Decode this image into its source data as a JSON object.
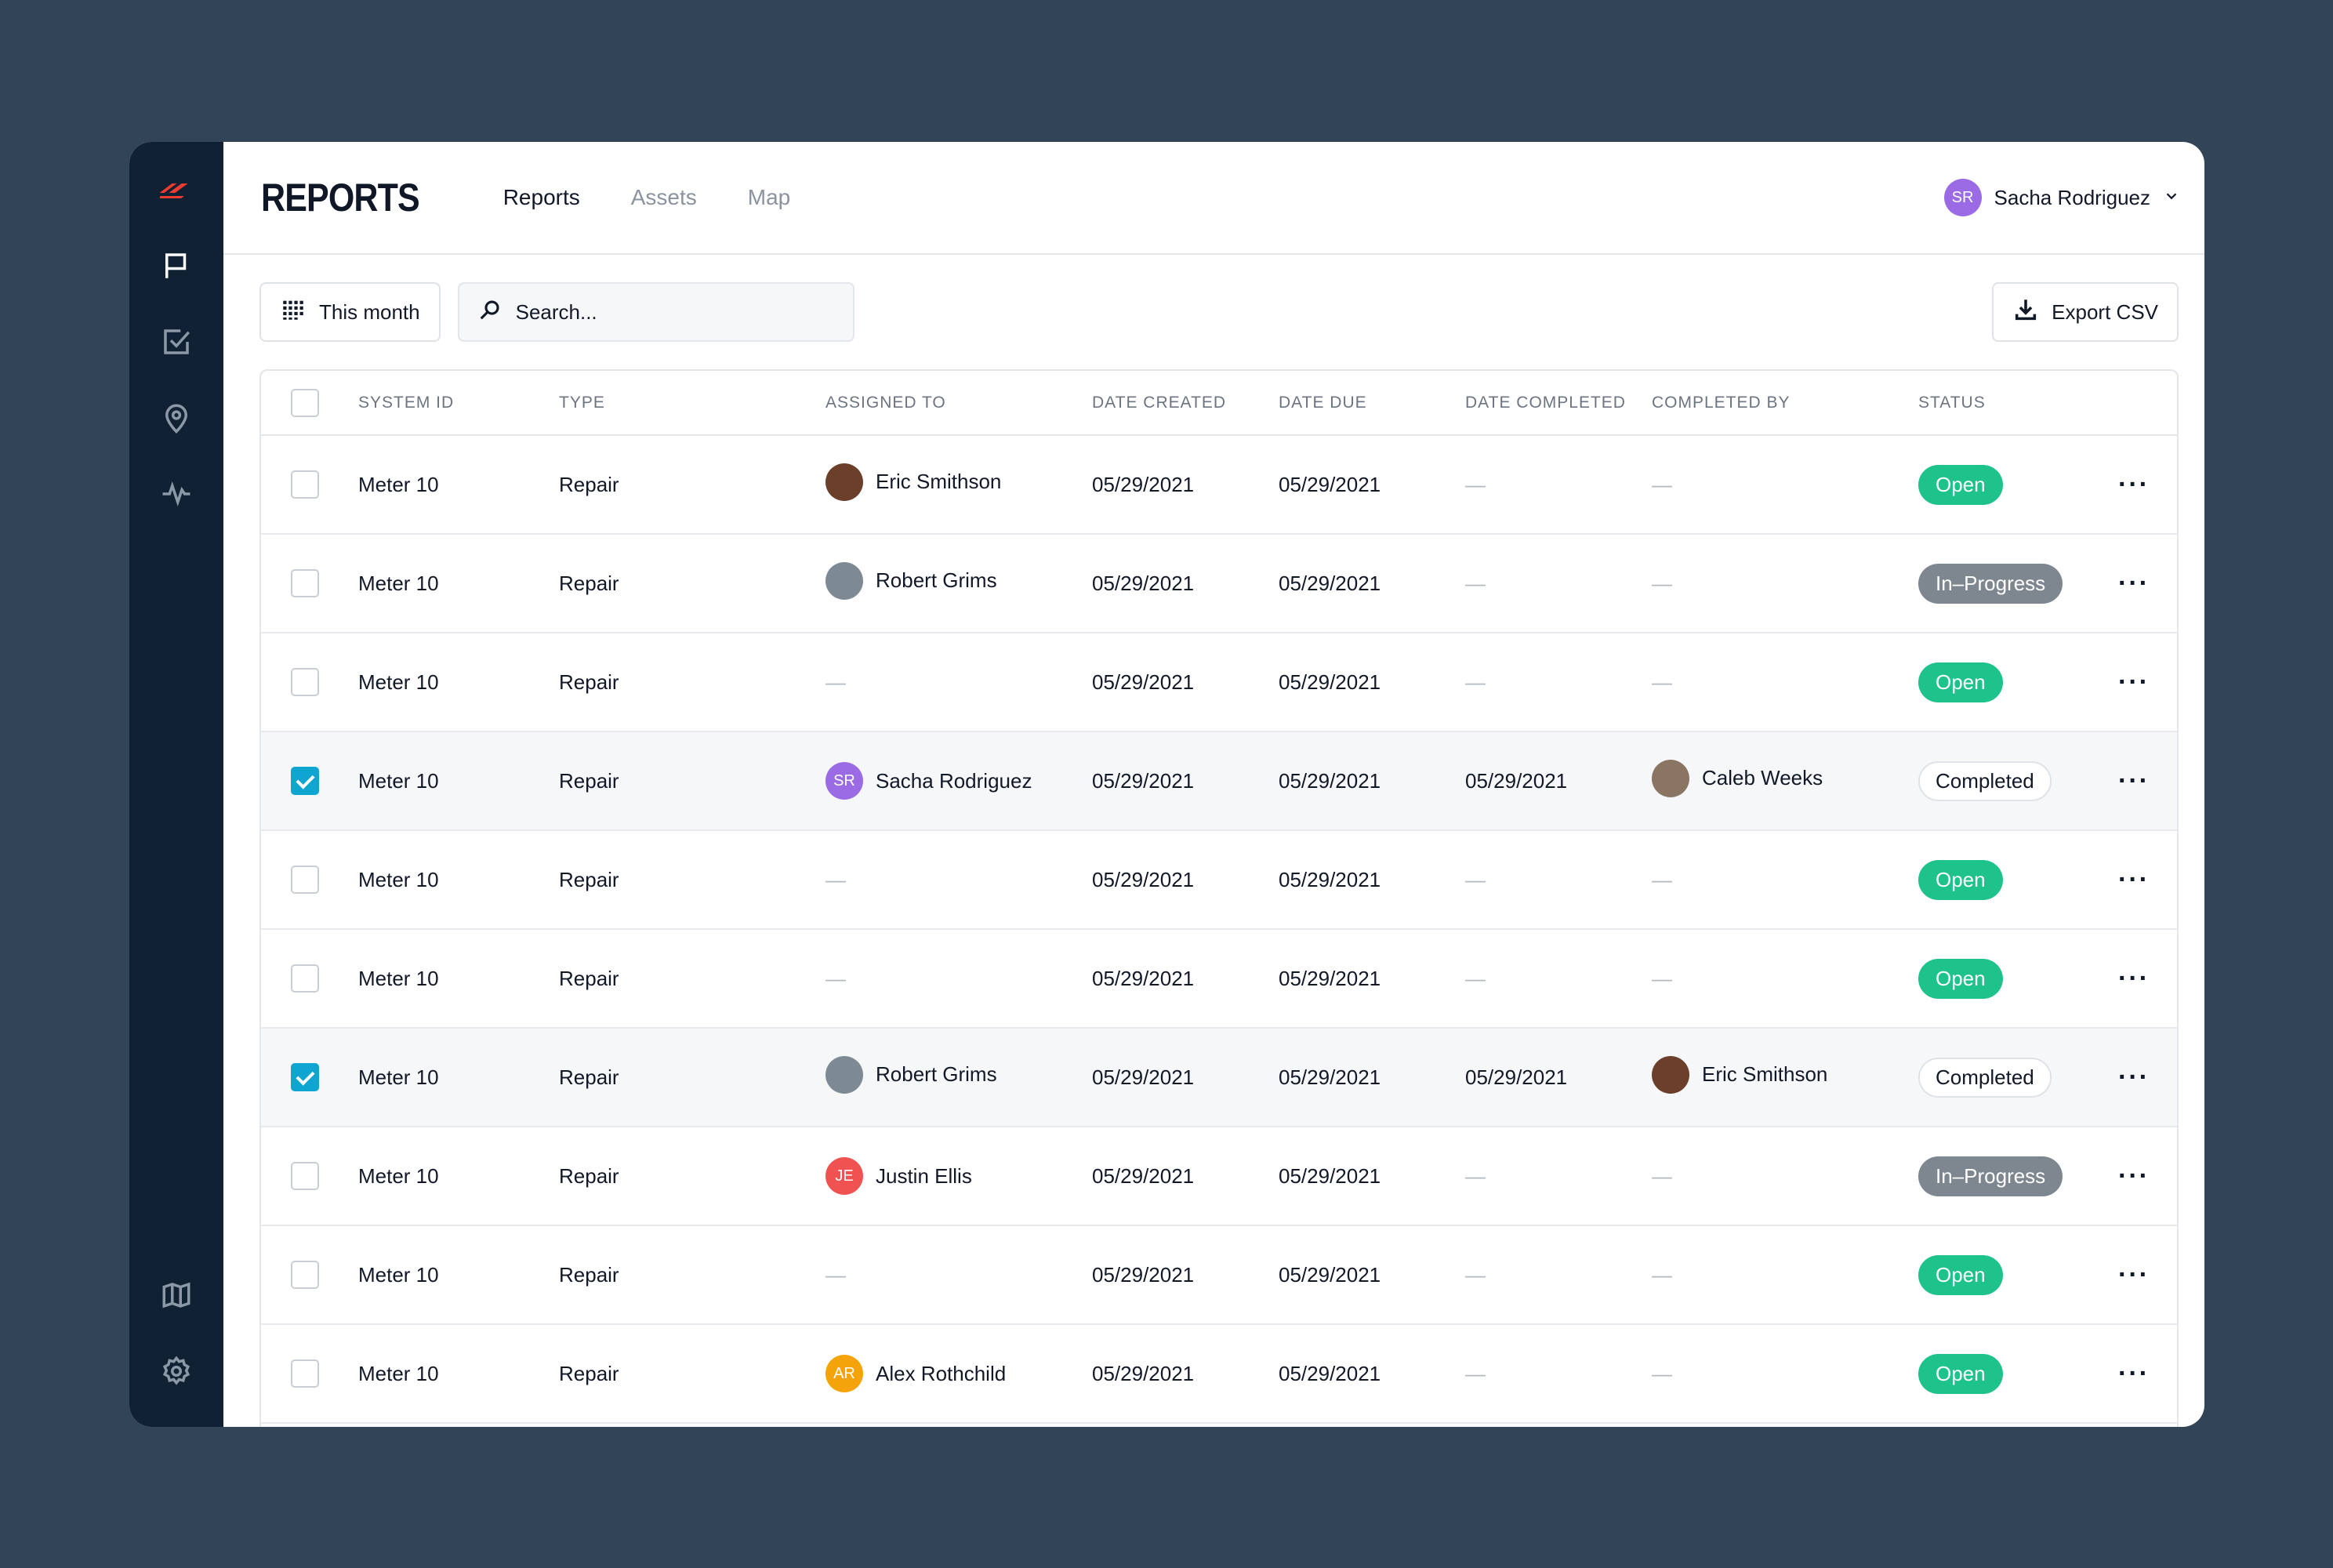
{
  "app": {
    "brand": "REPORTS",
    "tabs": [
      {
        "label": "Reports",
        "active": true
      },
      {
        "label": "Assets",
        "active": false
      },
      {
        "label": "Map",
        "active": false
      }
    ],
    "user": {
      "name": "Sacha Rodriguez",
      "initials": "SR",
      "avatar_color": "#9b6be6"
    }
  },
  "sidebar": {
    "top_icons": [
      "logo-icon",
      "flag-icon",
      "checkbox-icon",
      "location-pin-icon",
      "activity-icon"
    ],
    "bottom_icons": [
      "map-icon",
      "gear-icon"
    ],
    "logo_color": "#f03b2f"
  },
  "toolbar": {
    "date_filter_label": "This month",
    "search_placeholder": "Search...",
    "export_label": "Export CSV"
  },
  "table": {
    "columns": [
      "SYSTEM ID",
      "TYPE",
      "ASSIGNED TO",
      "DATE CREATED",
      "DATE DUE",
      "DATE COMPLETED",
      "COMPLETED BY",
      "STATUS"
    ],
    "rows": [
      {
        "checked": false,
        "system_id": "Meter 10",
        "type": "Repair",
        "assigned": {
          "name": "Eric Smithson",
          "initials": "",
          "color": "#6b3f2a"
        },
        "date_created": "05/29/2021",
        "date_due": "05/29/2021",
        "date_completed": "—",
        "completed_by": null,
        "status": "Open"
      },
      {
        "checked": false,
        "system_id": "Meter 10",
        "type": "Repair",
        "assigned": {
          "name": "Robert Grims",
          "initials": "",
          "color": "#7d8a93"
        },
        "date_created": "05/29/2021",
        "date_due": "05/29/2021",
        "date_completed": "—",
        "completed_by": null,
        "status": "In–Progress"
      },
      {
        "checked": false,
        "system_id": "Meter 10",
        "type": "Repair",
        "assigned": null,
        "date_created": "05/29/2021",
        "date_due": "05/29/2021",
        "date_completed": "—",
        "completed_by": null,
        "status": "Open"
      },
      {
        "checked": true,
        "system_id": "Meter 10",
        "type": "Repair",
        "assigned": {
          "name": "Sacha Rodriguez",
          "initials": "SR",
          "color": "#9b6be6"
        },
        "date_created": "05/29/2021",
        "date_due": "05/29/2021",
        "date_completed": "05/29/2021",
        "completed_by": {
          "name": "Caleb Weeks",
          "initials": "",
          "color": "#8a7563"
        },
        "status": "Completed"
      },
      {
        "checked": false,
        "system_id": "Meter 10",
        "type": "Repair",
        "assigned": null,
        "date_created": "05/29/2021",
        "date_due": "05/29/2021",
        "date_completed": "—",
        "completed_by": null,
        "status": "Open"
      },
      {
        "checked": false,
        "system_id": "Meter 10",
        "type": "Repair",
        "assigned": null,
        "date_created": "05/29/2021",
        "date_due": "05/29/2021",
        "date_completed": "—",
        "completed_by": null,
        "status": "Open"
      },
      {
        "checked": true,
        "system_id": "Meter 10",
        "type": "Repair",
        "assigned": {
          "name": "Robert Grims",
          "initials": "",
          "color": "#7d8a93"
        },
        "date_created": "05/29/2021",
        "date_due": "05/29/2021",
        "date_completed": "05/29/2021",
        "completed_by": {
          "name": "Eric Smithson",
          "initials": "",
          "color": "#6b3f2a"
        },
        "status": "Completed"
      },
      {
        "checked": false,
        "system_id": "Meter 10",
        "type": "Repair",
        "assigned": {
          "name": "Justin Ellis",
          "initials": "JE",
          "color": "#f05252"
        },
        "date_created": "05/29/2021",
        "date_due": "05/29/2021",
        "date_completed": "—",
        "completed_by": null,
        "status": "In–Progress"
      },
      {
        "checked": false,
        "system_id": "Meter 10",
        "type": "Repair",
        "assigned": null,
        "date_created": "05/29/2021",
        "date_due": "05/29/2021",
        "date_completed": "—",
        "completed_by": null,
        "status": "Open"
      },
      {
        "checked": false,
        "system_id": "Meter 10",
        "type": "Repair",
        "assigned": {
          "name": "Alex Rothchild",
          "initials": "AR",
          "color": "#f5a30b"
        },
        "date_created": "05/29/2021",
        "date_due": "05/29/2021",
        "date_completed": "—",
        "completed_by": null,
        "status": "Open"
      }
    ]
  },
  "colors": {
    "background": "#324557",
    "sidebar": "#0f2133",
    "open": "#1ec28b",
    "in_progress": "#7e8790",
    "checkbox_checked": "#0ea5d0"
  }
}
